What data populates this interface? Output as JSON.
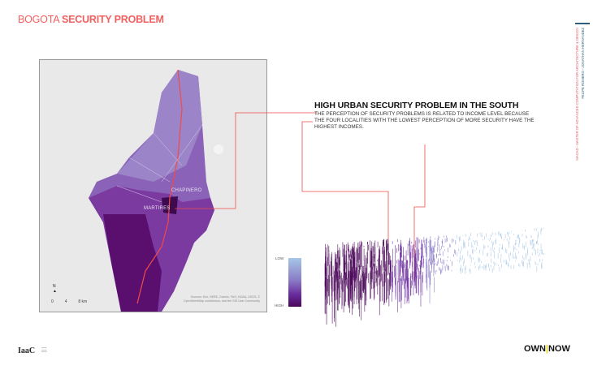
{
  "header": {
    "title_light": "BOGOTA",
    "title_bold": "SECURITY PROBLEM"
  },
  "map": {
    "labels": [
      "CHAPINERO",
      "MARTIRES"
    ],
    "north": "N",
    "scale": [
      "0",
      "4",
      "8"
    ],
    "scale_unit": "km",
    "attribution": "Sources: Esri, HERE, Garmin, FAO, NOAA, USGS, © OpenStreetMap contributors, and the GIS User Community"
  },
  "finding": {
    "heading": "HIGH URBAN SECURITY PROBLEM IN THE SOUTH",
    "text": "THE PERCEPTION OF SECURITY PROBLEMS IS RELATED TO INCOME LEVEL BECAUSE THE FOUR LOCALITIES WITH THE LOWEST PERCEPTION OF MORE SECURITY HAVE THE HIGHEST INCOMES."
  },
  "legend": {
    "low": "LOW",
    "high": "HIGH",
    "colors": [
      "#a6c6e6",
      "#8b7dc6",
      "#6a2c9e",
      "#4a0758"
    ]
  },
  "sidebar": {
    "program": "MACAD - MASTER OF ADVANCED COMPUTATION FOR ARCHITECTURE & DESIGN",
    "authors": "FELIPE ROMERO - JONATHAN HERNANDEZ"
  },
  "footer": {
    "left_logo": "IaaC",
    "right_logo_a": "OWN",
    "right_logo_sep": "|",
    "right_logo_b": "NOW"
  },
  "colors": {
    "accent": "#f26060",
    "line": "#f04a4a"
  }
}
